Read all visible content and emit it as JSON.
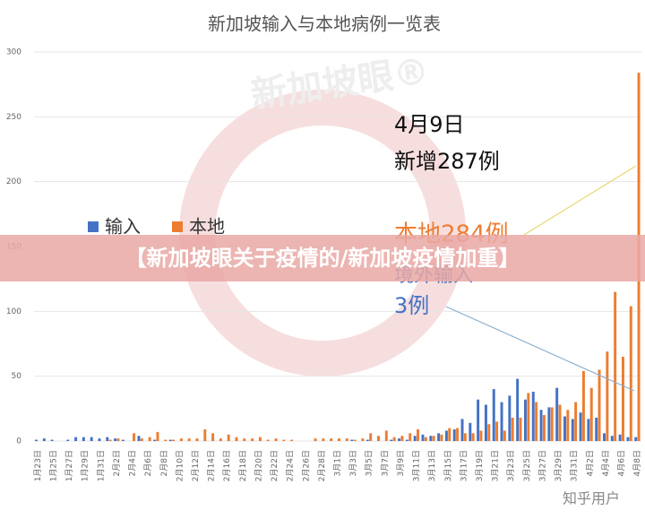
{
  "chart_data": {
    "type": "bar",
    "title": "新加坡输入与本地病例一览表",
    "categories": [
      "1月23日",
      null,
      "1月25日",
      null,
      "1月27日",
      null,
      "1月29日",
      null,
      "1月31日",
      null,
      "2月2日",
      null,
      "2月4日",
      null,
      "2月6日",
      null,
      "2月8日",
      null,
      "2月10日",
      null,
      "2月12日",
      null,
      "2月14日",
      null,
      "2月16日",
      null,
      "2月18日",
      null,
      "2月20日",
      null,
      "2月22日",
      null,
      "2月24日",
      null,
      "2月26日",
      null,
      "2月28日",
      null,
      "3月1日",
      null,
      "3月3日",
      null,
      "3月5日",
      null,
      "3月7日",
      null,
      "3月9日",
      null,
      "3月11日",
      null,
      "3月13日",
      null,
      "3月15日",
      null,
      "3月17日",
      null,
      "3月19日",
      null,
      "3月21日",
      null,
      "3月23日",
      null,
      "3月25日",
      null,
      "3月27日",
      null,
      "3月29日",
      null,
      "3月31日",
      null,
      "4月2日",
      null,
      "4月4日",
      null,
      "4月6日",
      null,
      "4月8日"
    ],
    "series": [
      {
        "name": "输入",
        "color": "#4472c4",
        "values": [
          1,
          2,
          1,
          0,
          1,
          3,
          3,
          3,
          2,
          3,
          2,
          1,
          0,
          4,
          0,
          1,
          0,
          1,
          0,
          0,
          0,
          0,
          0,
          0,
          0,
          0,
          0,
          0,
          0,
          0,
          0,
          0,
          0,
          0,
          0,
          0,
          0,
          0,
          0,
          0,
          1,
          0,
          1,
          0,
          0,
          1,
          2,
          1,
          4,
          5,
          4,
          6,
          8,
          9,
          17,
          14,
          32,
          28,
          40,
          30,
          35,
          48,
          32,
          38,
          24,
          26,
          41,
          19,
          17,
          22,
          17,
          18,
          6,
          4,
          5,
          3,
          3
        ]
      },
      {
        "name": "本地",
        "color": "#ed7d31",
        "values": [
          0,
          0,
          0,
          0,
          0,
          0,
          0,
          0,
          0,
          1,
          2,
          0,
          6,
          2,
          3,
          7,
          1,
          1,
          2,
          2,
          2,
          9,
          6,
          2,
          5,
          3,
          2,
          2,
          3,
          1,
          2,
          1,
          1,
          0,
          0,
          2,
          2,
          2,
          2,
          2,
          1,
          2,
          6,
          4,
          8,
          3,
          4,
          6,
          9,
          3,
          4,
          5,
          10,
          10,
          6,
          6,
          8,
          13,
          15,
          8,
          18,
          18,
          37,
          30,
          20,
          26,
          28,
          24,
          30,
          54,
          41,
          55,
          69,
          115,
          65,
          104,
          284
        ]
      }
    ],
    "ylim": [
      0,
      300
    ],
    "yticks": [
      0,
      50,
      100,
      150,
      200,
      250,
      300
    ],
    "annotations": [
      "4月9日",
      "新增287例",
      "本地284例",
      "境外输入",
      "3例"
    ],
    "banner": "【新加坡眼关于疫情的/新加坡疫情加重】",
    "watermark": "新加坡眼®",
    "footer": "知乎用户"
  }
}
